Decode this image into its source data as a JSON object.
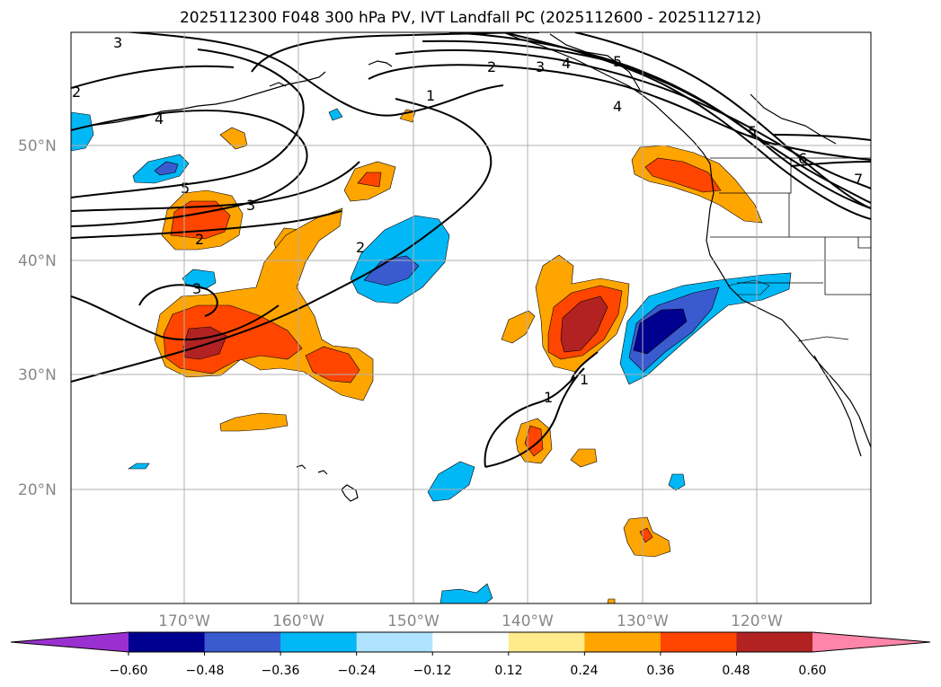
{
  "figure": {
    "title": "2025112300 F048 300 hPa PV, IVT Landfall PC (2025112600 - 2025112712)"
  },
  "axes": {
    "lon_labels": [
      "170°W",
      "160°W",
      "150°W",
      "140°W",
      "130°W",
      "120°W"
    ],
    "lat_labels": [
      "50°N",
      "40°N",
      "30°N",
      "20°N"
    ]
  },
  "contour_labels": [
    "3",
    "2",
    "4",
    "5",
    "3",
    "2",
    "3",
    "2",
    "1",
    "2",
    "3",
    "4",
    "5",
    "6",
    "7",
    "1",
    "1",
    "4",
    "5"
  ],
  "colorbar": {
    "ticks": [
      "−0.60",
      "−0.48",
      "−0.36",
      "−0.24",
      "−0.12",
      "0.12",
      "0.24",
      "0.36",
      "0.48",
      "0.60"
    ],
    "colors": [
      "#9b30d0",
      "#000090",
      "#3a5bd0",
      "#00b8f5",
      "#afe3ff",
      "#ffffff",
      "#ffeb8a",
      "#ffa500",
      "#ff4500",
      "#b22222",
      "#ff86aa"
    ]
  },
  "colors": {
    "neg_light": "#00b8f5",
    "neg_mid": "#3a5bd0",
    "neg_dark": "#000090",
    "pos_light": "#ffa500",
    "pos_mid": "#ff4500",
    "pos_dark": "#b22222"
  }
}
